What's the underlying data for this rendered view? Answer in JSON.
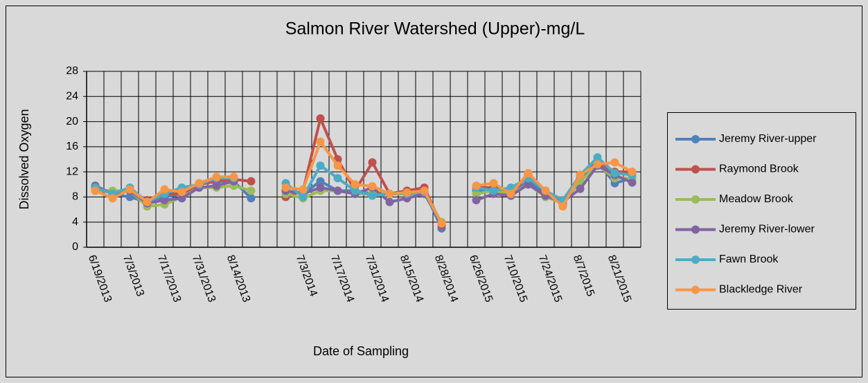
{
  "chart_data": {
    "type": "line",
    "title": "Salmon River Watershed (Upper)-mg/L",
    "x_label": "Date of Sampling",
    "y_label": "Dissolved Oxygen",
    "categories": [
      "6/19/2013",
      null,
      "7/3/2013",
      null,
      "7/17/2013",
      null,
      "7/31/2013",
      null,
      "8/14/2013",
      null,
      null,
      null,
      "7/3/2014",
      null,
      "7/17/2014",
      null,
      "7/31/2014",
      null,
      "8/15/2014",
      null,
      "8/28/2014",
      null,
      "6/26/2015",
      null,
      "7/10/2015",
      null,
      "7/24/2015",
      null,
      "8/7/2015",
      null,
      "8/21/2015",
      null
    ],
    "ylim": [
      0,
      28
    ],
    "yticks": [
      0,
      4,
      8,
      12,
      16,
      20,
      24,
      28
    ],
    "grid": true,
    "legend": "right",
    "series": [
      {
        "name": "Jeremy River-upper",
        "color": "#4f81bd",
        "values": [
          9.5,
          8.5,
          8,
          7.2,
          8,
          8.5,
          10,
          10.5,
          10.5,
          7.8,
          null,
          9,
          8.5,
          10.5,
          9,
          9,
          8.5,
          8.5,
          8.8,
          9,
          3,
          null,
          9,
          9,
          8.5,
          10.5,
          8.5,
          7,
          11,
          13.5,
          10.2,
          11
        ]
      },
      {
        "name": "Raymond Brook",
        "color": "#c0504d",
        "values": [
          9,
          8.8,
          9,
          7.5,
          8.5,
          8.5,
          10,
          10.5,
          10.8,
          10.5,
          null,
          8,
          9,
          20.5,
          14,
          9,
          13.5,
          8.5,
          9,
          9.5,
          3.5,
          null,
          9.5,
          9.5,
          8.5,
          11.5,
          9,
          6.8,
          11.5,
          13.5,
          12,
          12
        ]
      },
      {
        "name": "Meadow Brook",
        "color": "#9bbb59",
        "values": [
          9,
          9,
          9,
          6.5,
          6.8,
          8,
          9.5,
          9.5,
          9.8,
          9,
          null,
          8.5,
          7.8,
          9,
          9,
          8.5,
          8.5,
          8.5,
          8.5,
          8.5,
          4,
          null,
          8.5,
          9,
          8.5,
          10,
          8,
          7,
          10.5,
          13,
          11,
          11
        ]
      },
      {
        "name": "Jeremy River-lower",
        "color": "#8064a2",
        "values": [
          9.8,
          8.5,
          9,
          7,
          7.5,
          7.8,
          9.5,
          9.8,
          10.5,
          null,
          null,
          9,
          8.5,
          9.5,
          9,
          8.5,
          9.5,
          7.2,
          7.8,
          8.5,
          3.8,
          null,
          7.5,
          8.5,
          8.2,
          10,
          8.2,
          7.2,
          9.3,
          13,
          11.5,
          10.3
        ]
      },
      {
        "name": "Fawn Brook",
        "color": "#4bacc6",
        "values": [
          9.5,
          8.5,
          9.5,
          7.2,
          8.5,
          9.5,
          10,
          11,
          11,
          null,
          null,
          10.2,
          8,
          13,
          11,
          9,
          8.2,
          8.5,
          8.5,
          8.8,
          3.8,
          null,
          9.5,
          9,
          9.5,
          11,
          9,
          7.5,
          11.5,
          14.3,
          11.8,
          11.5
        ]
      },
      {
        "name": "Blackledge River",
        "color": "#f79646",
        "values": [
          9,
          7.8,
          9.2,
          7.2,
          9.2,
          8.8,
          10.2,
          11.2,
          11.2,
          null,
          null,
          9.5,
          9.2,
          16.8,
          13,
          10,
          9.7,
          8.5,
          8.7,
          9,
          3.8,
          null,
          9.8,
          10.2,
          8.5,
          11.8,
          9,
          6.5,
          11.5,
          13.2,
          13.5,
          12
        ]
      }
    ]
  }
}
